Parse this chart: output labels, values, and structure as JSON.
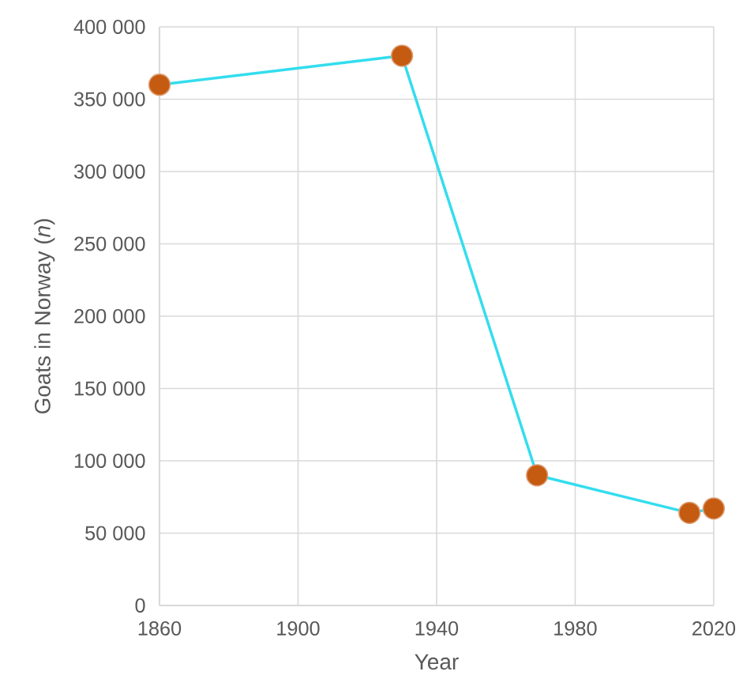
{
  "chart_data": {
    "type": "line",
    "xlabel": "Year",
    "ylabel": "Goats in Norway (*n*)",
    "x": [
      1860,
      1930,
      1969,
      2013,
      2020
    ],
    "series": [
      {
        "color": "#33ddee",
        "colors": [
          "#c55a11",
          "#c55a11",
          "#c55a11",
          "#c55a11",
          "#c55a11"
        ],
        "values": [
          360000,
          380000,
          90000,
          64000,
          67000
        ]
      }
    ],
    "xlim": [
      1860,
      2020
    ],
    "xticks": [
      1860,
      1900,
      1940,
      1980,
      2020
    ],
    "ylim": [
      0,
      400000
    ],
    "yticks": [
      0,
      {
        "value": 50000,
        "label": "50 000"
      },
      {
        "value": 100000,
        "label": "100 000"
      },
      {
        "value": 150000,
        "label": "150 000"
      },
      {
        "value": 200000,
        "label": "200 000"
      },
      {
        "value": 250000,
        "label": "250 000"
      },
      {
        "value": 300000,
        "label": "300 000"
      },
      {
        "value": 350000,
        "label": "350 000"
      },
      {
        "value": 400000,
        "label": "400 000"
      }
    ],
    "grid": true,
    "marker": "circle",
    "line_style": "solid"
  }
}
